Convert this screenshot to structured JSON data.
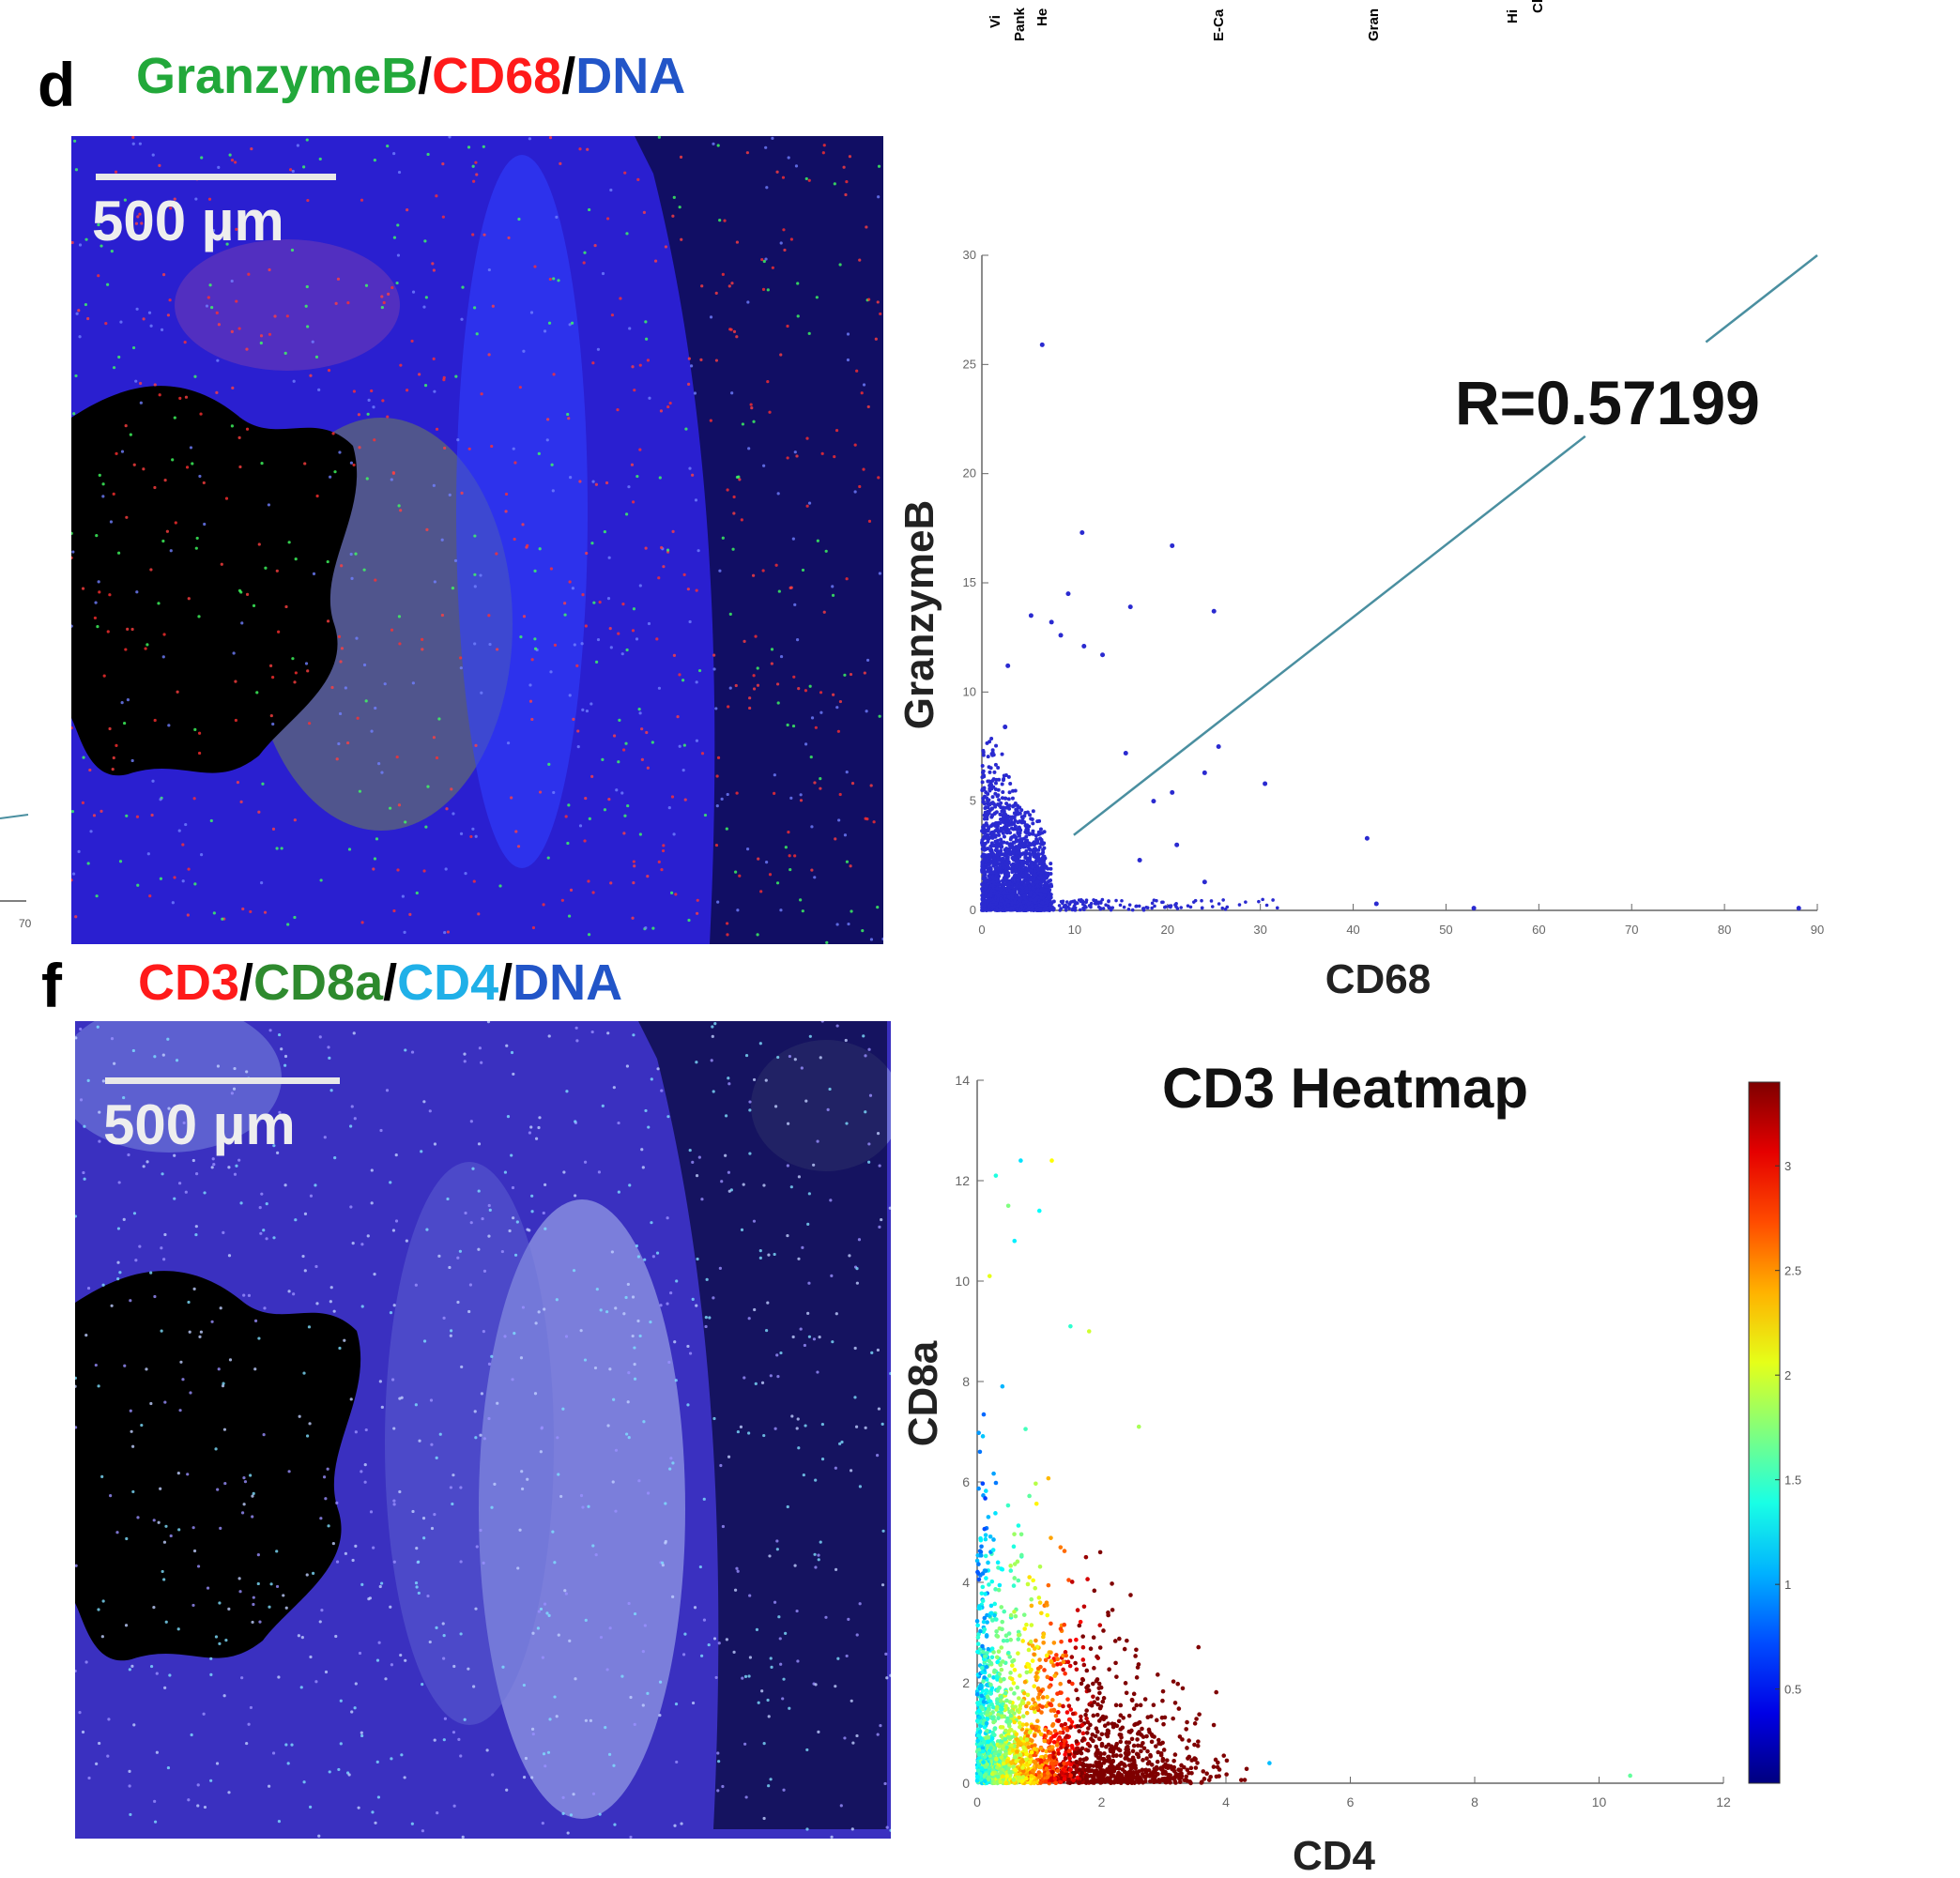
{
  "top_clipped_labels": [
    "Vi",
    "Pank",
    "He",
    "E-Ca",
    "Gran",
    "Hi",
    "Cl"
  ],
  "panel_d": {
    "letter": "d",
    "title_parts": [
      {
        "text": "GranzymeB",
        "color": "#22a83a"
      },
      {
        "text": "/",
        "color": "#000000"
      },
      {
        "text": "CD68",
        "color": "#ff1a1a"
      },
      {
        "text": "/",
        "color": "#000000"
      },
      {
        "text": "DNA",
        "color": "#2255c8"
      }
    ],
    "scale_bar": "500 µm"
  },
  "panel_f": {
    "letter": "f",
    "title_parts": [
      {
        "text": "CD3",
        "color": "#ff1a1a"
      },
      {
        "text": "/",
        "color": "#000000"
      },
      {
        "text": "CD8a",
        "color": "#2e8a2e"
      },
      {
        "text": "/",
        "color": "#000000"
      },
      {
        "text": "CD4",
        "color": "#1fb0e8"
      },
      {
        "text": "/",
        "color": "#000000"
      },
      {
        "text": "DNA",
        "color": "#2255c8"
      }
    ],
    "scale_bar": "500 µm"
  },
  "left_clipped_tick": "70",
  "chart_data": [
    {
      "type": "scatter",
      "title": "",
      "annotation": "R=0.57199",
      "xlabel": "CD68",
      "ylabel": "GranzymeB",
      "xlim": [
        0,
        90
      ],
      "ylim": [
        0,
        30
      ],
      "xticks": [
        "0",
        "10",
        "20",
        "30",
        "40",
        "50",
        "60",
        "70",
        "80",
        "90"
      ],
      "yticks": [
        "0",
        "5",
        "10",
        "15",
        "20",
        "25",
        "30"
      ],
      "point_color": "#2a2ad0",
      "fit_line": {
        "color": "#4a8fa0",
        "x": [
          9.9,
          90
        ],
        "y": [
          3.45,
          30
        ],
        "gap_x": [
          65,
          78
        ]
      },
      "dense_cluster": {
        "x": [
          0,
          8
        ],
        "y": [
          0,
          10
        ],
        "baseline_tail_x": [
          0,
          35
        ]
      },
      "outliers": [
        [
          6.5,
          25.9
        ],
        [
          10.8,
          17.3
        ],
        [
          20.5,
          16.7
        ],
        [
          9.3,
          14.5
        ],
        [
          16,
          13.9
        ],
        [
          25,
          13.7
        ],
        [
          5.3,
          13.5
        ],
        [
          7.5,
          13.2
        ],
        [
          8.5,
          12.6
        ],
        [
          11,
          12.1
        ],
        [
          13,
          11.7
        ],
        [
          2.8,
          11.2
        ],
        [
          2.5,
          8.4
        ],
        [
          15.5,
          7.2
        ],
        [
          25.5,
          7.5
        ],
        [
          24,
          6.3
        ],
        [
          30.5,
          5.8
        ],
        [
          20.5,
          5.4
        ],
        [
          18.5,
          5.0
        ],
        [
          21,
          3.0
        ],
        [
          41.5,
          3.3
        ],
        [
          17,
          2.3
        ],
        [
          24,
          1.3
        ],
        [
          42.5,
          0.3
        ],
        [
          53,
          0.1
        ],
        [
          88,
          0.1
        ]
      ]
    },
    {
      "type": "scatter",
      "title": "CD3 Heatmap",
      "xlabel": "CD4",
      "ylabel": "CD8a",
      "xlim": [
        0,
        12
      ],
      "ylim": [
        0,
        14
      ],
      "xticks": [
        "0",
        "2",
        "4",
        "6",
        "8",
        "10",
        "12"
      ],
      "yticks": [
        "0",
        "2",
        "4",
        "6",
        "8",
        "10",
        "12",
        "14"
      ],
      "colorbar": {
        "ticks": [
          "0.5",
          "1",
          "1.5",
          "2",
          "2.5",
          "3"
        ],
        "range": [
          0.05,
          3.4
        ],
        "colormap": "jet"
      },
      "dense_cluster": {
        "x": [
          0,
          4.5
        ],
        "y": [
          0,
          12.5
        ]
      },
      "outliers": [
        [
          0.7,
          12.4
        ],
        [
          0.3,
          12.1
        ],
        [
          1.2,
          12.4
        ],
        [
          0.5,
          11.5
        ],
        [
          1.0,
          11.4
        ],
        [
          0.6,
          10.8
        ],
        [
          0.2,
          10.1
        ],
        [
          1.5,
          9.1
        ],
        [
          1.8,
          9.0
        ],
        [
          2.6,
          7.1
        ],
        [
          4.7,
          0.4
        ],
        [
          10.5,
          0.15
        ]
      ]
    }
  ]
}
